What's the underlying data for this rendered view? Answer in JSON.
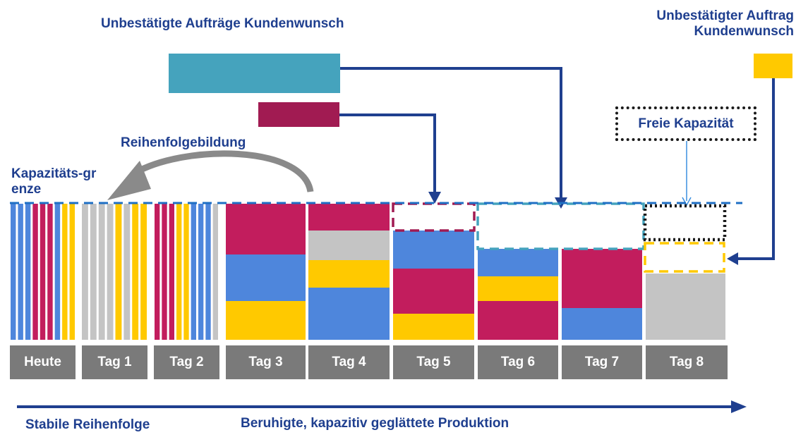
{
  "labels": {
    "unconfirmed_orders": "Unbestätigte Aufträge Kundenwunsch",
    "unconfirmed_order_right": "Unbestätigter Auftrag Kundenwunsch",
    "sequencing": "Reihenfolgebildung",
    "capacity_limit": "Kapazitäts-grenze",
    "free_capacity": "Freie Kapazität",
    "stable_sequence": "Stabile Reihenfolge",
    "smoothed_production": "Beruhigte, kapazitiv geglättete Produktion"
  },
  "days": [
    "Heute",
    "Tag 1",
    "Tag 2",
    "Tag 3",
    "Tag 4",
    "Tag 5",
    "Tag 6",
    "Tag 7",
    "Tag 8"
  ],
  "colors": {
    "blue": "#4e86dc",
    "magenta": "#c21d5d",
    "yellow": "#ffc900",
    "grey": "#c4c4c4",
    "teal": "#45a3bd",
    "wine": "#a11b52",
    "dark_blue": "#1f3f8f",
    "dark_grey": "#7a7a7a",
    "arrow_grey": "#8a8a8a",
    "limit_blue": "#1e6fc4"
  },
  "bars": {
    "heute": [
      "blue",
      "blue",
      "blue",
      "magenta",
      "magenta",
      "magenta",
      "blue",
      "yellow",
      "yellow"
    ],
    "tag1": [
      "grey",
      "grey",
      "grey",
      "grey",
      "yellow",
      "grey",
      "yellow",
      "yellow"
    ],
    "tag2": [
      "magenta",
      "magenta",
      "magenta",
      "yellow",
      "yellow",
      "blue",
      "blue",
      "blue",
      "grey"
    ]
  },
  "stacks": {
    "tag3": [
      "magenta",
      "blue",
      "yellow"
    ],
    "tag4": [
      "magenta",
      "grey",
      "yellow",
      "blue"
    ],
    "tag5": [
      "blue",
      "magenta",
      "yellow"
    ],
    "tag6": [
      "blue",
      "yellow",
      "magenta"
    ],
    "tag7": [
      "magenta",
      "blue"
    ],
    "tag8": [
      "grey"
    ]
  }
}
